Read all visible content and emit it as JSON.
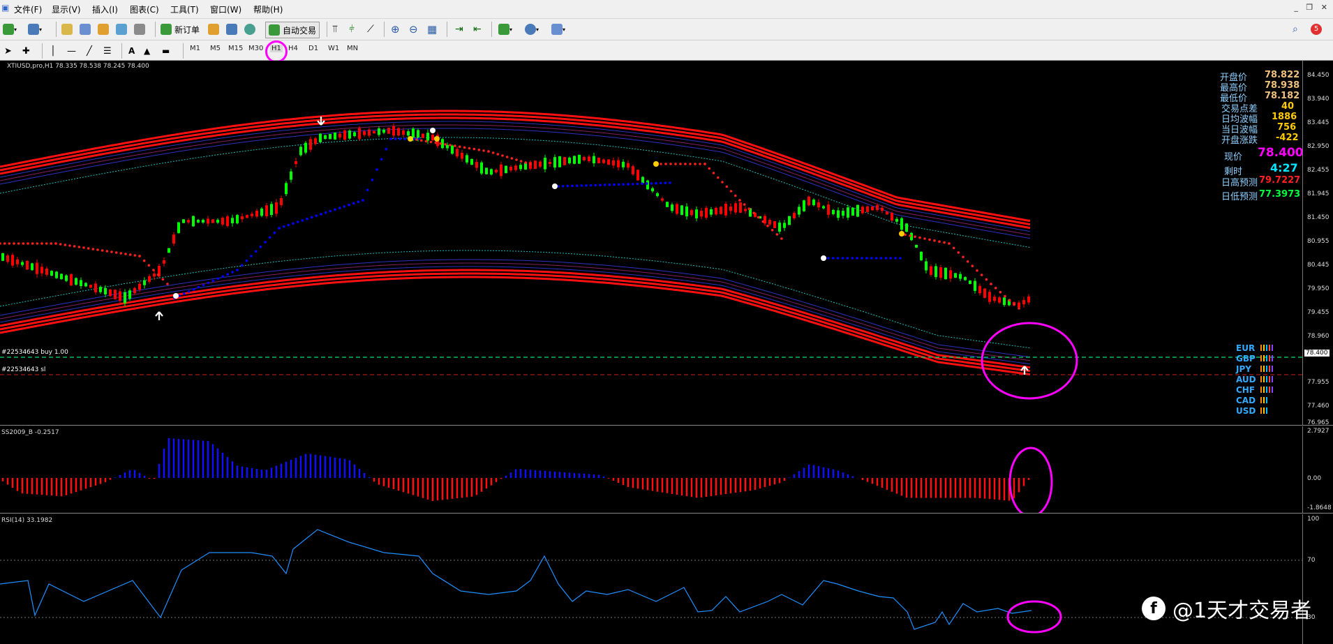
{
  "menu": [
    "文件(F)",
    "显示(V)",
    "插入(I)",
    "图表(C)",
    "工具(T)",
    "窗口(W)",
    "帮助(H)"
  ],
  "toolbar": {
    "new_order": "新订单",
    "auto_trade": "自动交易",
    "alerts_badge": "5"
  },
  "timeframes": [
    "M1",
    "M5",
    "M15",
    "M30",
    "H1",
    "H4",
    "D1",
    "W1",
    "MN"
  ],
  "chart": {
    "header": "XTIUSD,pro,H1  78.335 78.538 78.245 78.400",
    "order_line_label": "#22534643 buy 1.00",
    "sl_line_label": "#22534643 sl",
    "price_ticks": [
      "84.450",
      "83.940",
      "83.445",
      "82.950",
      "82.455",
      "81.945",
      "81.450",
      "80.955",
      "80.445",
      "79.950",
      "79.455",
      "78.960",
      "78.400",
      "77.955",
      "77.460",
      "76.965"
    ],
    "current_price_tag": "78.400"
  },
  "info_panel": [
    {
      "label": "开盘价",
      "value": "78.822",
      "color": "#f0c080"
    },
    {
      "label": "最高价",
      "value": "78.938",
      "color": "#f0c080"
    },
    {
      "label": "最低价",
      "value": "78.182",
      "color": "#f0c080"
    },
    {
      "label": "交易点差",
      "value": "40",
      "color": "#ffcc00"
    },
    {
      "label": "日均波幅",
      "value": "1886",
      "color": "#ffcc00"
    },
    {
      "label": "当日波幅",
      "value": "756",
      "color": "#ffcc00"
    },
    {
      "label": "开盘涨跌",
      "value": "-422",
      "color": "#ffcc00"
    }
  ],
  "price_now": {
    "label": "现价",
    "value": "78.400"
  },
  "countdown": {
    "label": "剩时",
    "value": "4:27"
  },
  "forecast_high": {
    "label": "日高预测",
    "value": "79.7227"
  },
  "forecast_low": {
    "label": "日低预测",
    "value": "77.3973"
  },
  "currencies": [
    "EUR",
    "GBP",
    "JPY",
    "AUD",
    "CHF",
    "CAD",
    "USD"
  ],
  "indicator1": {
    "header": "SS2009_B -0.2517",
    "ticks": [
      "2.7927",
      "0.00",
      "-1.8648"
    ]
  },
  "rsi": {
    "header": "RSI(14) 33.1982",
    "ticks": [
      "100",
      "70",
      "30"
    ]
  },
  "watermark": "@1天才交易者",
  "colors": {
    "bull": "#00ff00",
    "bear": "#ff0000",
    "band": "#ff0000",
    "stop_blue": "#0000ff",
    "stop_red": "#ff2020",
    "rsi": "#1e90ff",
    "highlight": "#ff00ff"
  }
}
